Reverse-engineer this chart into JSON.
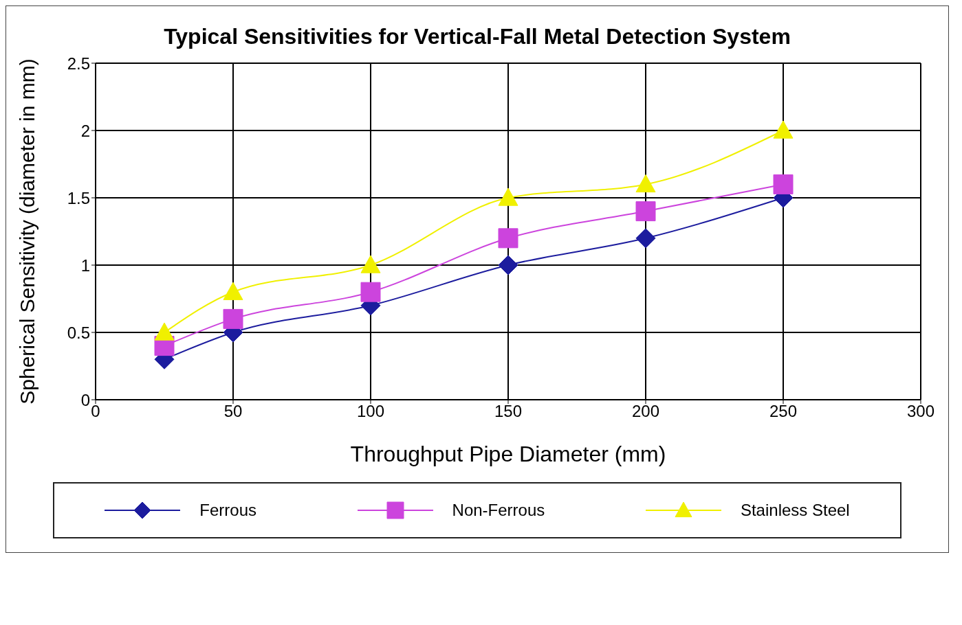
{
  "chart_data": {
    "type": "line",
    "title": "Typical Sensitivities for Vertical-Fall Metal Detection System",
    "xlabel": "Throughput Pipe Diameter (mm)",
    "ylabel": "Spherical Sensitivity (diameter in mm)",
    "x": [
      25,
      50,
      100,
      150,
      200,
      250
    ],
    "series": [
      {
        "name": "Ferrous",
        "color": "#1c1c9e",
        "marker": "diamond",
        "values": [
          0.3,
          0.5,
          0.7,
          1.0,
          1.2,
          1.5
        ]
      },
      {
        "name": "Non-Ferrous",
        "color": "#cc44dd",
        "marker": "square",
        "values": [
          0.4,
          0.6,
          0.8,
          1.2,
          1.4,
          1.6
        ]
      },
      {
        "name": "Stainless Steel",
        "color": "#f0f000",
        "marker": "triangle",
        "values": [
          0.5,
          0.8,
          1.0,
          1.5,
          1.6,
          2.0
        ]
      }
    ],
    "xlim": [
      0,
      300
    ],
    "xticks": [
      0,
      50,
      100,
      150,
      200,
      250,
      300
    ],
    "ylim": [
      0,
      2.5
    ],
    "yticks": [
      0,
      0.5,
      1,
      1.5,
      2,
      2.5
    ],
    "grid": true,
    "legend": "bottom",
    "line_style": "solid"
  }
}
